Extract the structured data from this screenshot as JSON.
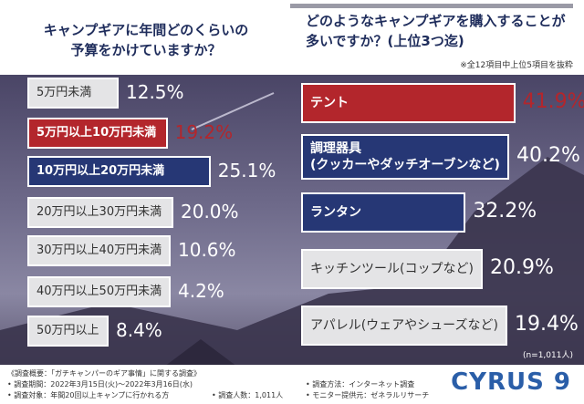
{
  "chart_data": [
    {
      "type": "bar",
      "orientation": "horizontal",
      "title": "キャンプギアに年間どのくらいの\n予算をかけていますか？",
      "categories": [
        "5万円未満",
        "5万円以上10万円未満",
        "10万円以上20万円未満",
        "20万円以上30万円未満",
        "30万円以上40万円未満",
        "40万円以上50万円未満",
        "50万円以上"
      ],
      "values": [
        12.5,
        19.2,
        25.1,
        20.0,
        10.6,
        4.2,
        8.4
      ],
      "value_labels": [
        "12.5%",
        "19.2%",
        "25.1%",
        "20.0%",
        "10.6%",
        "4.2%",
        "8.4%"
      ],
      "colors": [
        "#e4e4e6",
        "#b3262c",
        "#263775",
        "#e4e4e6",
        "#e4e4e6",
        "#e4e4e6",
        "#e4e4e6"
      ],
      "label_colors": [
        "#ffffff",
        "#b3262c",
        "#ffffff",
        "#ffffff",
        "#ffffff",
        "#ffffff",
        "#ffffff"
      ]
    },
    {
      "type": "bar",
      "orientation": "horizontal",
      "title": "どのようなキャンプギアを購入することが\n多いですか？(上位3つ迄)",
      "note": "※全12項目中上位5項目を抜粋",
      "annotation": "(n=1,011人)",
      "categories": [
        "テント",
        "調理器具\n(クッカーやダッチオーブンなど)",
        "ランタン",
        "キッチンツール(コップなど)",
        "アパレル(ウェアやシューズなど)"
      ],
      "values": [
        41.9,
        40.2,
        32.2,
        20.9,
        19.4
      ],
      "value_labels": [
        "41.9%",
        "40.2%",
        "32.2%",
        "20.9%",
        "19.4%"
      ],
      "colors": [
        "#b3262c",
        "#263775",
        "#263775",
        "#e4e4e6",
        "#e4e4e6"
      ],
      "label_colors": [
        "#b3262c",
        "#ffffff",
        "#ffffff",
        "#ffffff",
        "#ffffff"
      ]
    }
  ],
  "footer": {
    "lines_left": [
      "《調査概要：「ガチキャンパーのギア事情」に関する調査》",
      "• 調査期間：2022年3月15日(火)～2022年3月16日(水)",
      "• 調査対象：年間20回以上キャンプに行かれる方"
    ],
    "count": "• 調査人数：1,011人",
    "lines_right": [
      "• 調査方法：インターネット調査",
      "• モニター提供元：ゼネラルリサーチ"
    ],
    "logo": "CYRUS 9"
  }
}
